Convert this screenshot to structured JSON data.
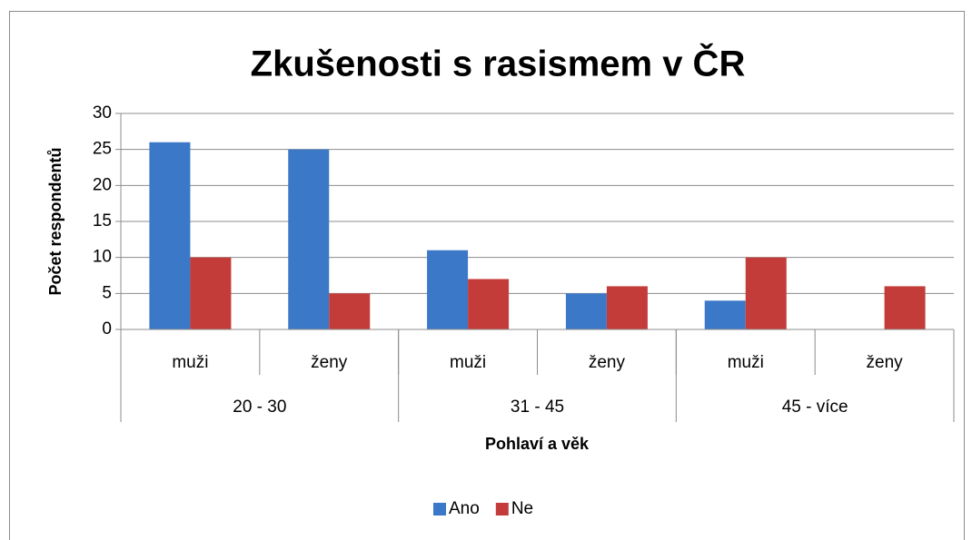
{
  "chart_data": {
    "type": "bar",
    "title": "Zkušenosti s rasismem v ČR",
    "y_label": "Počet respondentů",
    "x_label": "Pohlaví a věk",
    "categories": [
      "muži",
      "ženy",
      "muži",
      "ženy",
      "muži",
      "ženy"
    ],
    "category_groups": [
      "20 - 30",
      "31 - 45",
      "45 - více"
    ],
    "series": [
      {
        "name": "Ano",
        "color": "#3b78c8",
        "values": [
          26,
          25,
          11,
          5,
          4,
          0
        ]
      },
      {
        "name": "Ne",
        "color": "#c43c3a",
        "values": [
          10,
          5,
          7,
          6,
          10,
          6
        ]
      }
    ],
    "ylim": [
      0,
      30
    ],
    "yticks": [
      0,
      5,
      10,
      15,
      20,
      25,
      30
    ],
    "grid": true,
    "legend": "bottom"
  }
}
